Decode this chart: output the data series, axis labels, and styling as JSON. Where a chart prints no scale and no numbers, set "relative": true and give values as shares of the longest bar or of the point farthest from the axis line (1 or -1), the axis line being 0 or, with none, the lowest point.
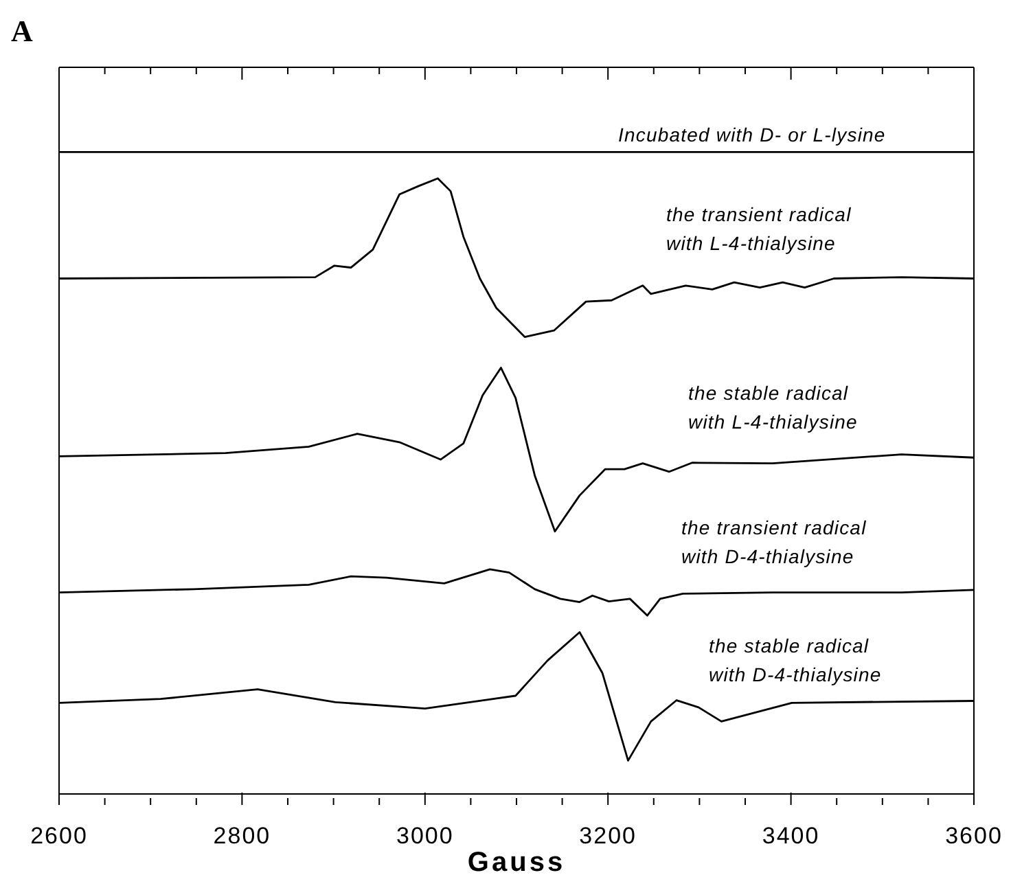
{
  "chart_data": {
    "type": "line",
    "title": "A",
    "xlabel": "Gauss",
    "relative": true,
    "legend": false,
    "xlim": [
      2600,
      3600
    ],
    "xticks": [
      2600,
      {
        "value": 2650,
        "label": null
      },
      {
        "value": 2700,
        "label": null
      },
      {
        "value": 2750,
        "label": null
      },
      2800,
      {
        "value": 2850,
        "label": null
      },
      {
        "value": 2900,
        "label": null
      },
      {
        "value": 2950,
        "label": null
      },
      3000,
      {
        "value": 3050,
        "label": null
      },
      {
        "value": 3100,
        "label": null
      },
      {
        "value": 3150,
        "label": null
      },
      3200,
      {
        "value": 3250,
        "label": null
      },
      {
        "value": 3300,
        "label": null
      },
      {
        "value": 3350,
        "label": null
      },
      3400,
      {
        "value": 3450,
        "label": null
      },
      {
        "value": 3500,
        "label": null
      },
      {
        "value": 3550,
        "label": null
      },
      3600
    ],
    "series": [
      {
        "name": "Incubated with D- or L-lysine",
        "color": "#000000",
        "x": [
          2600,
          2900,
          3200,
          3600
        ],
        "values": [
          1.0,
          1.0,
          1.0,
          1.0
        ]
      },
      {
        "name": "the transient radical with L-4-thialysine",
        "color": "#000000",
        "x": [
          2600,
          2880,
          2901,
          2919,
          2943,
          2972,
          2993,
          3014,
          3028,
          3042,
          3060,
          3078,
          3109,
          3141,
          3176,
          3204,
          3238,
          3247,
          3285,
          3314,
          3338,
          3366,
          3391,
          3415,
          3447,
          3521,
          3600
        ],
        "values": [
          0.803,
          0.805,
          0.823,
          0.82,
          0.848,
          0.934,
          0.947,
          0.959,
          0.939,
          0.868,
          0.803,
          0.757,
          0.712,
          0.722,
          0.767,
          0.769,
          0.792,
          0.779,
          0.792,
          0.786,
          0.797,
          0.789,
          0.797,
          0.789,
          0.803,
          0.805,
          0.803
        ]
      },
      {
        "name": "the stable radical with L-4-thialysine",
        "color": "#000000",
        "x": [
          2600,
          2782,
          2873,
          2926,
          2972,
          3017,
          3042,
          3063,
          3083,
          3099,
          3120,
          3142,
          3169,
          3197,
          3218,
          3238,
          3267,
          3292,
          3380,
          3521,
          3600
        ],
        "values": [
          0.526,
          0.531,
          0.541,
          0.561,
          0.548,
          0.521,
          0.546,
          0.621,
          0.664,
          0.617,
          0.496,
          0.409,
          0.465,
          0.506,
          0.506,
          0.515,
          0.502,
          0.516,
          0.515,
          0.529,
          0.524
        ]
      },
      {
        "name": "the transient radical with D-4-thialysine",
        "color": "#000000",
        "x": [
          2600,
          2747,
          2873,
          2919,
          2958,
          3021,
          3071,
          3092,
          3120,
          3148,
          3169,
          3183,
          3201,
          3224,
          3243,
          3257,
          3282,
          3380,
          3521,
          3600
        ],
        "values": [
          0.314,
          0.319,
          0.326,
          0.339,
          0.337,
          0.328,
          0.35,
          0.345,
          0.319,
          0.304,
          0.299,
          0.309,
          0.3,
          0.304,
          0.278,
          0.304,
          0.312,
          0.314,
          0.314,
          0.318
        ]
      },
      {
        "name": "the stable radical with D-4-thialysine",
        "color": "#000000",
        "x": [
          2600,
          2711,
          2817,
          2902,
          3000,
          3099,
          3134,
          3169,
          3194,
          3222,
          3247,
          3275,
          3299,
          3324,
          3401,
          3600
        ],
        "values": [
          0.142,
          0.148,
          0.163,
          0.143,
          0.133,
          0.153,
          0.208,
          0.252,
          0.188,
          0.052,
          0.113,
          0.146,
          0.135,
          0.113,
          0.142,
          0.145
        ]
      }
    ]
  }
}
